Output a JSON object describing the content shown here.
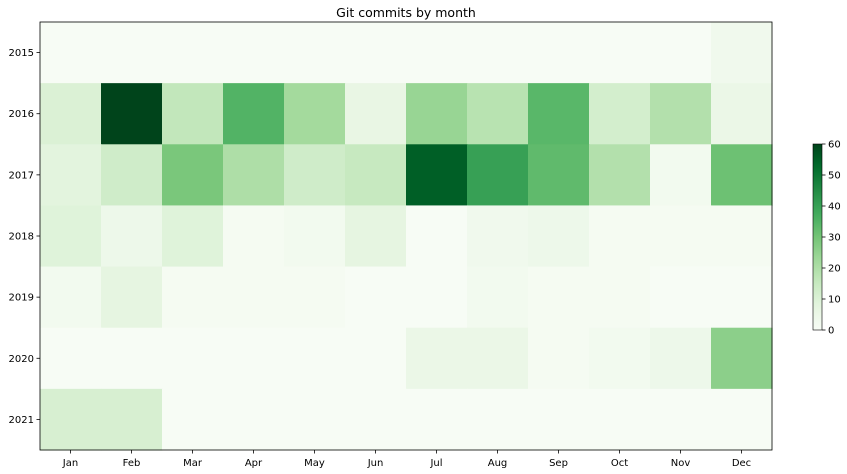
{
  "chart_data": {
    "type": "heatmap",
    "title": "Git commits by month",
    "xlabel": "",
    "ylabel": "",
    "x_categories": [
      "Jan",
      "Feb",
      "Mar",
      "Apr",
      "May",
      "Jun",
      "Jul",
      "Aug",
      "Sep",
      "Oct",
      "Nov",
      "Dec"
    ],
    "y_categories": [
      "2015",
      "2016",
      "2017",
      "2018",
      "2019",
      "2020",
      "2021"
    ],
    "values": [
      [
        0,
        0,
        0,
        0,
        0,
        0,
        0,
        0,
        0,
        0,
        0,
        3
      ],
      [
        10,
        60,
        16,
        35,
        22,
        6,
        24,
        18,
        34,
        12,
        19,
        5
      ],
      [
        8,
        13,
        29,
        20,
        13,
        15,
        55,
        40,
        33,
        19,
        2,
        31
      ],
      [
        9,
        4,
        9,
        1,
        2,
        7,
        0,
        3,
        4,
        1,
        1,
        1
      ],
      [
        2,
        7,
        1,
        1,
        1,
        0,
        0,
        2,
        1,
        1,
        0,
        0
      ],
      [
        0,
        0,
        0,
        0,
        0,
        0,
        5,
        5,
        1,
        2,
        4,
        26
      ],
      [
        11,
        11,
        0,
        0,
        0,
        0,
        0,
        0,
        0,
        0,
        0,
        0
      ]
    ],
    "colorbar": {
      "min": 0,
      "max": 60,
      "ticks": [
        "0",
        "10",
        "20",
        "30",
        "40",
        "50",
        "60"
      ],
      "colormap": "Greens",
      "position": "right"
    },
    "grid": false,
    "legend": "none"
  }
}
